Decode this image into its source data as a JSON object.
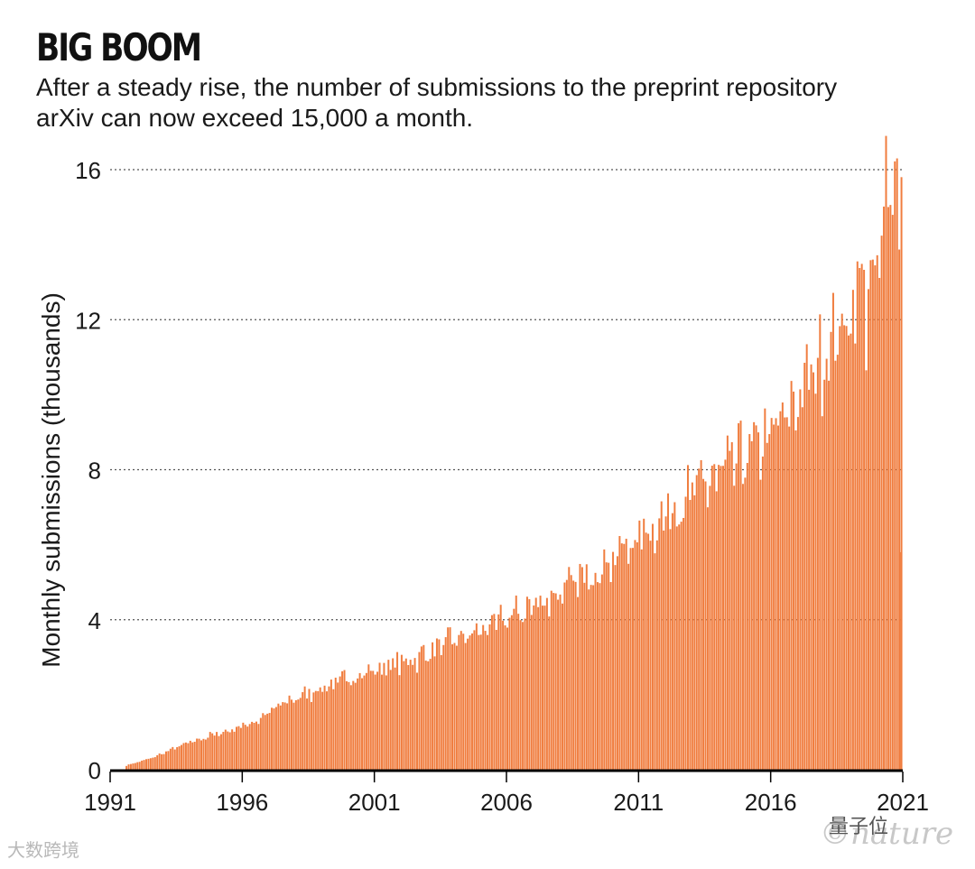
{
  "chart_data": {
    "type": "bar",
    "title": "BIG BOOM",
    "subtitle": "After a steady rise, the number of submissions to the preprint repository arXiv can now exceed 15,000 a month.",
    "ylabel": "Monthly submissions (thousands)",
    "xlabel": "",
    "ylim": [
      0,
      16
    ],
    "yticks": [
      0,
      4,
      8,
      12,
      16
    ],
    "xticks": [
      "1991",
      "1996",
      "2001",
      "2006",
      "2011",
      "2016",
      "2021"
    ],
    "x_range": [
      "1991-08",
      "2021-01"
    ],
    "grid": "horizontal dotted",
    "bar_color": "#f07d3f",
    "annual_monthly_levels_thousands": [
      {
        "year": 1991,
        "level": 0.1
      },
      {
        "year": 1992,
        "level": 0.3
      },
      {
        "year": 1993,
        "level": 0.6
      },
      {
        "year": 1994,
        "level": 0.85
      },
      {
        "year": 1995,
        "level": 1.05
      },
      {
        "year": 1996,
        "level": 1.3
      },
      {
        "year": 1997,
        "level": 1.75
      },
      {
        "year": 1998,
        "level": 2.05
      },
      {
        "year": 1999,
        "level": 2.3
      },
      {
        "year": 2000,
        "level": 2.55
      },
      {
        "year": 2001,
        "level": 2.75
      },
      {
        "year": 2002,
        "level": 2.95
      },
      {
        "year": 2003,
        "level": 3.3
      },
      {
        "year": 2004,
        "level": 3.55
      },
      {
        "year": 2005,
        "level": 3.85
      },
      {
        "year": 2006,
        "level": 4.2
      },
      {
        "year": 2007,
        "level": 4.55
      },
      {
        "year": 2008,
        "level": 4.9
      },
      {
        "year": 2009,
        "level": 5.4
      },
      {
        "year": 2010,
        "level": 5.9
      },
      {
        "year": 2011,
        "level": 6.45
      },
      {
        "year": 2012,
        "level": 7.1
      },
      {
        "year": 2013,
        "level": 7.6
      },
      {
        "year": 2014,
        "level": 8.1
      },
      {
        "year": 2015,
        "level": 8.6
      },
      {
        "year": 2016,
        "level": 9.3
      },
      {
        "year": 2017,
        "level": 10.5
      },
      {
        "year": 2018,
        "level": 11.6
      },
      {
        "year": 2019,
        "level": 12.7
      },
      {
        "year": 2020,
        "level": 14.6
      }
    ],
    "notable_peaks_thousands": [
      {
        "date": "2020-05",
        "value": 16.9
      },
      {
        "date": "2020-10",
        "value": 16.3
      },
      {
        "date": "2020-12",
        "value": 15.8
      }
    ],
    "last_partial_month": {
      "date": "2021-01",
      "value": 5.8
    }
  },
  "watermarks": {
    "left": "大数跨境",
    "right": "量子位",
    "faded": "©nature"
  }
}
